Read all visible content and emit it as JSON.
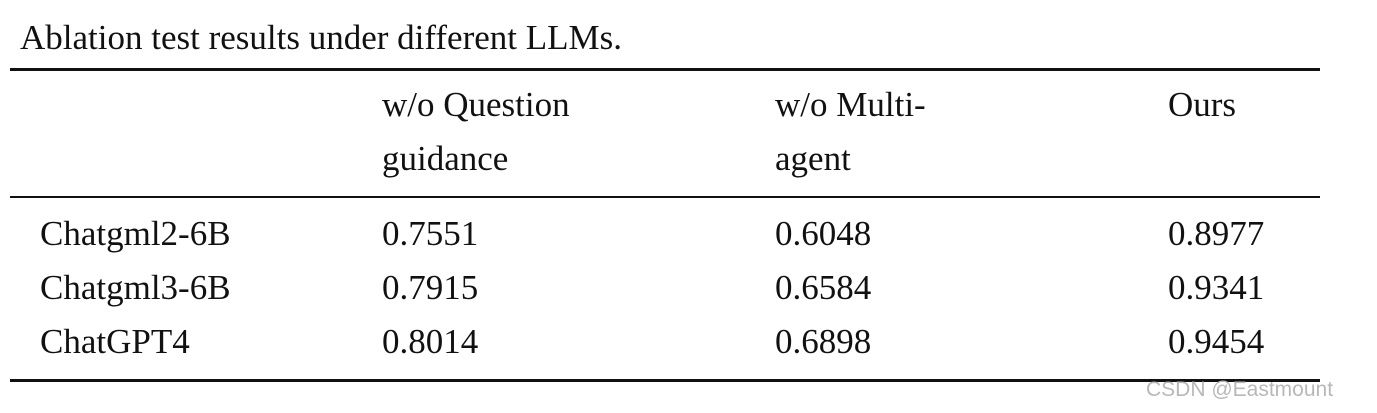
{
  "caption": "Ablation test results under different LLMs.",
  "table": {
    "header": [
      [
        "w/o Question",
        "guidance"
      ],
      [
        "w/o Multi-",
        "agent"
      ],
      [
        "Ours"
      ]
    ],
    "rows": [
      [
        "Chatgml2-6B",
        0.7551,
        0.6048,
        0.8977
      ],
      [
        "Chatgml3-6B",
        0.7915,
        0.6584,
        0.9341
      ],
      [
        "ChatGPT4",
        0.8014,
        0.6898,
        0.9454
      ]
    ]
  },
  "watermark": "CSDN @Eastmount"
}
